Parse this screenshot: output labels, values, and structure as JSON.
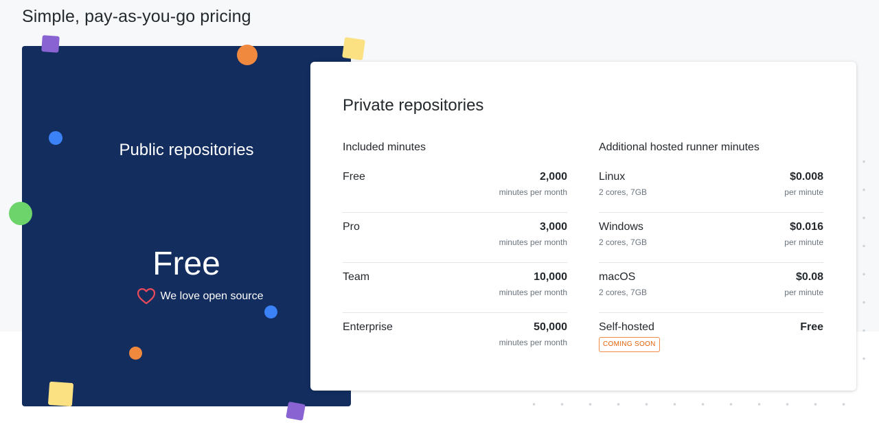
{
  "page": {
    "title": "Simple, pay-as-you-go pricing"
  },
  "public": {
    "title": "Public repositories",
    "price": "Free",
    "tagline": "We love open source",
    "tagline_icon": "heart-outline-icon",
    "card_color": "#122d5e",
    "heart_color": "#ea4a5a"
  },
  "private": {
    "title": "Private repositories",
    "included": {
      "header": "Included minutes",
      "rows": [
        {
          "name": "Free",
          "value": "2,000",
          "unit": "minutes per month"
        },
        {
          "name": "Pro",
          "value": "3,000",
          "unit": "minutes per month"
        },
        {
          "name": "Team",
          "value": "10,000",
          "unit": "minutes per month"
        },
        {
          "name": "Enterprise",
          "value": "50,000",
          "unit": "minutes per month"
        }
      ]
    },
    "additional": {
      "header": "Additional hosted runner minutes",
      "rows": [
        {
          "name": "Linux",
          "spec": "2 cores, 7GB",
          "value": "$0.008",
          "unit": "per minute"
        },
        {
          "name": "Windows",
          "spec": "2 cores, 7GB",
          "value": "$0.016",
          "unit": "per minute"
        },
        {
          "name": "macOS",
          "spec": "2 cores, 7GB",
          "value": "$0.08",
          "unit": "per minute"
        },
        {
          "name": "Self-hosted",
          "badge": "COMING SOON",
          "value": "Free"
        }
      ]
    }
  },
  "colors": {
    "orange": "#f0883e",
    "purple": "#8a63d2",
    "yellow": "#fbe181",
    "blue": "#3a82f6",
    "green": "#6cd46b",
    "badge": "#e36209"
  }
}
